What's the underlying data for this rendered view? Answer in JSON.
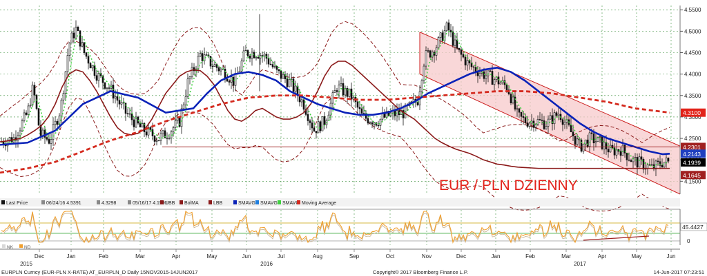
{
  "chart_data": {
    "type": "line",
    "title": "EUR / PLN DZIENNY",
    "y_ticks": [
      "4.5500",
      "4.5000",
      "4.4500",
      "4.4000",
      "4.3500",
      "4.3000",
      "4.2500",
      "4.2000",
      "4.1500"
    ],
    "ylim": [
      4.12,
      4.56
    ],
    "x_months": [
      "Dec",
      "Jan",
      "Feb",
      "Mar",
      "Apr",
      "May",
      "Jun",
      "Jul",
      "Aug",
      "Sep",
      "Oct",
      "Nov",
      "Dec",
      "Jan",
      "Feb",
      "Mar",
      "Apr",
      "May",
      "Jun"
    ],
    "x_years": [
      "2015",
      "2016",
      "2017"
    ],
    "price_labels": [
      {
        "text": "4.3100",
        "value": 4.31,
        "color": "#e2231a"
      },
      {
        "text": "4.2301",
        "value": 4.2301,
        "color": "#a02020"
      },
      {
        "text": "4.2143",
        "value": 4.2143,
        "color": "#1f3fbf"
      },
      {
        "text": "4.1939",
        "value": 4.1939,
        "color": "#000000"
      },
      {
        "text": "4.1645",
        "value": 4.1645,
        "color": "#a02020"
      }
    ],
    "horizontal_line": 4.2301,
    "series": [
      {
        "name": "Last Price",
        "kind": "candles"
      },
      {
        "name": "BolMA",
        "color": "#8b1a1a",
        "x": [
          0,
          10,
          20,
          30,
          40,
          50,
          60,
          70,
          80,
          90,
          100,
          110,
          120,
          130,
          140,
          150,
          160,
          170,
          180,
          190,
          200,
          210,
          220,
          230,
          240,
          250,
          260,
          270,
          280,
          290,
          300,
          310,
          320,
          330,
          340,
          350,
          360,
          370,
          380,
          390,
          400,
          410,
          420,
          430,
          440,
          450,
          460,
          470,
          480,
          490,
          500,
          510,
          520,
          530,
          540,
          550,
          560,
          570,
          580,
          590,
          600,
          610,
          620,
          630,
          640,
          650,
          660,
          670,
          680,
          690,
          700,
          710,
          720,
          730,
          740,
          750,
          760,
          770,
          780,
          790,
          800,
          810,
          820,
          830,
          840,
          850,
          860,
          870,
          880,
          890,
          900,
          910,
          920,
          930,
          940,
          950,
          960,
          970
        ],
        "y": [
          4.242,
          4.244,
          4.247,
          4.25,
          4.258,
          4.268,
          4.28,
          4.3,
          4.33,
          4.37,
          4.4,
          4.41,
          4.405,
          4.385,
          4.36,
          4.33,
          4.3,
          4.275,
          4.262,
          4.258,
          4.262,
          4.272,
          4.295,
          4.325,
          4.355,
          4.375,
          4.395,
          4.405,
          4.41,
          4.408,
          4.395,
          4.375,
          4.345,
          4.315,
          4.295,
          4.29,
          4.3,
          4.315,
          4.32,
          4.31,
          4.3,
          4.295,
          4.295,
          4.3,
          4.31,
          4.33,
          4.36,
          4.395,
          4.42,
          4.43,
          4.43,
          4.42,
          4.405,
          4.39,
          4.375,
          4.36,
          4.345,
          4.33,
          4.315,
          4.305,
          4.295,
          4.28,
          4.265,
          4.25,
          4.24,
          4.232,
          4.225,
          4.22,
          4.215,
          4.208,
          4.2,
          4.195,
          4.19,
          4.188,
          4.185,
          4.183,
          4.182,
          4.181,
          4.18,
          4.18,
          4.18,
          4.18,
          4.18,
          4.18,
          4.18,
          4.18,
          4.18,
          4.18,
          4.18,
          4.18,
          4.18,
          4.18,
          4.18,
          4.18,
          4.18,
          4.18,
          4.18,
          4.18
        ]
      },
      {
        "name": "SMAVG",
        "color": "#0a22b8",
        "x": [
          0,
          40,
          80,
          120,
          160,
          200,
          240,
          280,
          300,
          320,
          340,
          360,
          380,
          400,
          420,
          440,
          460,
          480,
          500,
          520,
          540,
          560,
          580,
          600,
          620,
          640,
          660,
          680,
          700,
          720,
          740,
          760,
          780,
          800,
          820,
          840,
          860,
          880,
          900,
          920,
          940,
          960,
          970
        ],
        "y": [
          4.235,
          4.24,
          4.268,
          4.33,
          4.36,
          4.345,
          4.31,
          4.32,
          4.355,
          4.385,
          4.4,
          4.405,
          4.398,
          4.385,
          4.36,
          4.345,
          4.33,
          4.32,
          4.31,
          4.305,
          4.305,
          4.31,
          4.32,
          4.335,
          4.355,
          4.37,
          4.385,
          4.4,
          4.41,
          4.415,
          4.405,
          4.385,
          4.36,
          4.335,
          4.31,
          4.285,
          4.265,
          4.25,
          4.24,
          4.23,
          4.22,
          4.213,
          4.2143
        ]
      },
      {
        "name": "Moving Average",
        "color": "#d42a1e",
        "x": [
          0,
          40,
          80,
          120,
          160,
          200,
          240,
          280,
          320,
          360,
          400,
          440,
          480,
          520,
          560,
          600,
          640,
          680,
          720,
          760,
          800,
          840,
          880,
          920,
          970
        ],
        "y": [
          4.17,
          4.18,
          4.195,
          4.22,
          4.245,
          4.265,
          4.29,
          4.31,
          4.33,
          4.345,
          4.35,
          4.35,
          4.345,
          4.34,
          4.34,
          4.345,
          4.35,
          4.355,
          4.36,
          4.36,
          4.355,
          4.345,
          4.335,
          4.32,
          4.31
        ]
      }
    ],
    "legend": [
      "Last Price",
      "06/24/16 4.5391",
      "4.3298",
      "05/16/17 4.1591",
      "UBB",
      "BolMA",
      "LBB",
      "SMAVG",
      "SMAVG",
      "SMAVG",
      "Moving Average"
    ],
    "rsi": {
      "ticks": [
        "45.4427",
        "0"
      ],
      "legend": [
        "NK",
        "ND"
      ]
    },
    "footer": {
      "left": "EURPLN Curncy (EUR-PLN X-RATE) AT_EURPLN_D  Daily 15NOV2015-14JUN2017",
      "center": "Copyright© 2017 Bloomberg Finance L.P.",
      "right": "14-Jun-2017 07:23:51"
    }
  }
}
